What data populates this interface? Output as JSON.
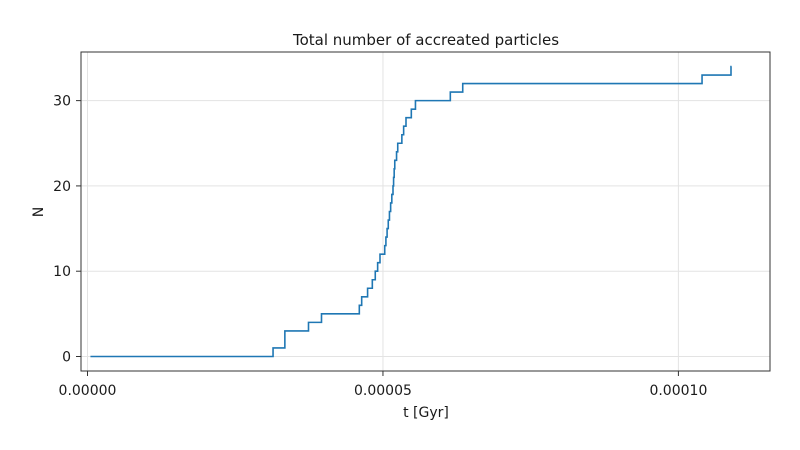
{
  "chart_data": {
    "type": "line",
    "style": "step",
    "title": "Total number of accreated particles",
    "xlabel": "t [Gyr]",
    "ylabel": "N",
    "xlim": [
      -1.1e-06,
      0.0001155
    ],
    "ylim": [
      -1.7,
      35.7
    ],
    "xticks": [
      0.0,
      5e-05,
      0.0001
    ],
    "xtick_labels": [
      "0.00000",
      "0.00005",
      "0.00010"
    ],
    "yticks": [
      0,
      10,
      20,
      30
    ],
    "ytick_labels": [
      "0",
      "10",
      "20",
      "30"
    ],
    "grid": true,
    "line_color": "#1f77b4",
    "series": [
      {
        "x": [
          5e-07,
          3.14e-05,
          3.34e-05,
          3.74e-05,
          3.96e-05,
          4.6e-05,
          4.64e-05,
          4.74e-05,
          4.82e-05,
          4.87e-05,
          4.91e-05,
          4.95e-05,
          5.03e-05,
          5.05e-05,
          5.07e-05,
          5.09e-05,
          5.11e-05,
          5.13e-05,
          5.15e-05,
          5.17e-05,
          5.18e-05,
          5.19e-05,
          5.2e-05,
          5.2e-05,
          5.21e-05,
          5.23e-05,
          5.25e-05,
          5.32e-05,
          5.35e-05,
          5.39e-05,
          5.48e-05,
          5.55e-05,
          5.64e-05,
          6.14e-05,
          6.35e-05,
          0.000104,
          0.0001089,
          0.000109
        ],
        "y": [
          0,
          1,
          3,
          4,
          5,
          6,
          7,
          8,
          9,
          10,
          11,
          12,
          13,
          14,
          15,
          16,
          17,
          18,
          19,
          20,
          21,
          22,
          23,
          23,
          23,
          24,
          25,
          26,
          27,
          28,
          29,
          30,
          30,
          31,
          32,
          33,
          34,
          34
        ]
      }
    ]
  }
}
